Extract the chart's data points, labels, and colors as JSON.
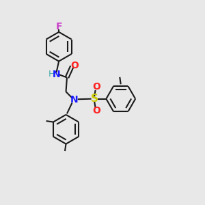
{
  "bg": "#e8e8e8",
  "lw": 1.5,
  "ring_r": 0.072,
  "colors": {
    "black": "#1a1a1a",
    "F": "#cc44cc",
    "N": "#1a1aff",
    "H": "#44aaaa",
    "O": "#ff2222",
    "S": "#cccc00"
  },
  "fig_w": 3.0,
  "fig_h": 3.0,
  "dpi": 100
}
